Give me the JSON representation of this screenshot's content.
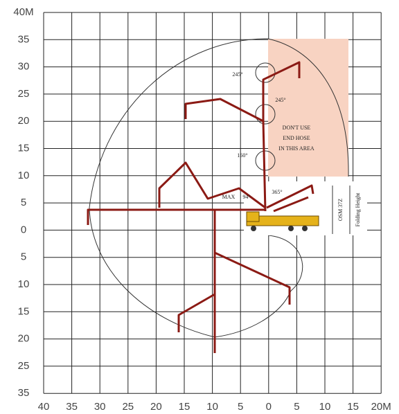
{
  "y_axis_labels": [
    "40M",
    "35",
    "30",
    "25",
    "20",
    "15",
    "10",
    "5",
    "0",
    "5",
    "10",
    "15",
    "20",
    "25",
    "35"
  ],
  "x_axis_labels": [
    "40",
    "35",
    "30",
    "25",
    "20",
    "15",
    "10",
    "5",
    "0",
    "5",
    "10",
    "15",
    "20M"
  ],
  "annotations": [
    {
      "text": "245°",
      "pos": "a"
    },
    {
      "text": "245°",
      "pos": "b"
    },
    {
      "text": "160°",
      "pos": "c"
    },
    {
      "text": "MAX",
      "pos": "d"
    },
    {
      "text": "94°",
      "pos": "e"
    },
    {
      "text": "365°",
      "pos": "f"
    }
  ],
  "warning": [
    "DON'T USE",
    "END HOSE",
    "IN THIS AREA"
  ],
  "model": "OSM 37Z",
  "folding_height_label": "Folding Height"
}
